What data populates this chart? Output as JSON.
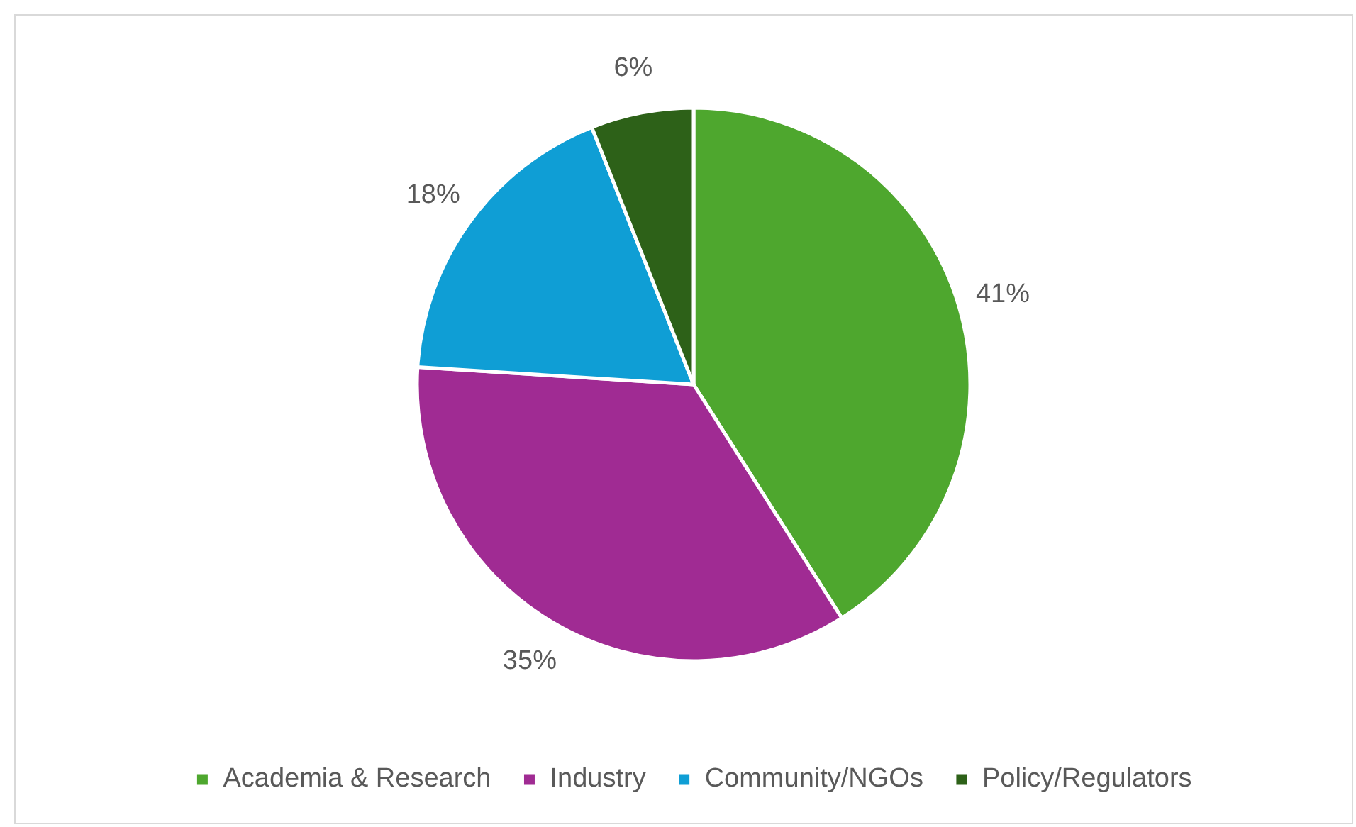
{
  "chart_data": {
    "type": "pie",
    "categories": [
      "Academia & Research",
      "Industry",
      "Community/NGOs",
      "Policy/Regulators"
    ],
    "values": [
      41,
      35,
      18,
      6
    ],
    "value_labels": [
      "41%",
      "35%",
      "18%",
      "6%"
    ],
    "colors": [
      "#4ea72e",
      "#a02b93",
      "#0f9ed5",
      "#2d6118"
    ],
    "legend": "bottom"
  }
}
